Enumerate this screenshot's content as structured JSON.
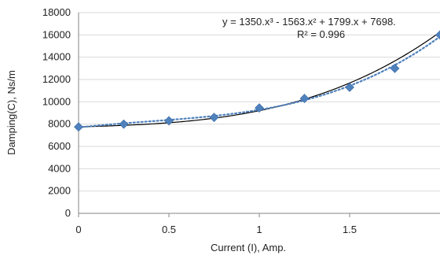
{
  "chart_data": {
    "type": "scatter",
    "xlabel": "Current (I), Amp.",
    "ylabel": "Damping(C), Ns/m",
    "xlim": [
      0,
      2
    ],
    "ylim": [
      0,
      18000
    ],
    "x_ticks": [
      "0",
      "0.5",
      "1",
      "1.5"
    ],
    "y_ticks": [
      "0",
      "2000",
      "4000",
      "6000",
      "8000",
      "10000",
      "12000",
      "14000",
      "16000",
      "18000"
    ],
    "grid": "horizontal",
    "series": [
      {
        "kind": "markers",
        "marker": "diamond",
        "x": [
          0,
          0.25,
          0.5,
          0.75,
          1.0,
          1.25,
          1.5,
          1.75,
          2.0
        ],
        "y": [
          7750,
          8000,
          8300,
          8600,
          9450,
          10300,
          11300,
          13000,
          16000
        ]
      },
      {
        "kind": "trendline",
        "style": "dotted",
        "fit": "polynomial-3",
        "coefficients": [
          1350,
          -1563,
          1799,
          7698
        ]
      },
      {
        "kind": "curve",
        "style": "solid",
        "coefficients": [
          920,
          36,
          500,
          7750
        ]
      }
    ],
    "annotations": {
      "equation": "y = 1350.x³ - 1563.x² + 1799.x + 7698.",
      "r_squared": "R² = 0.996"
    },
    "colors": {
      "marker": "#4f81bd",
      "trendline": "#4f81bd",
      "curve": "#000000",
      "grid": "#d9d9d9",
      "axis": "#868686"
    }
  }
}
